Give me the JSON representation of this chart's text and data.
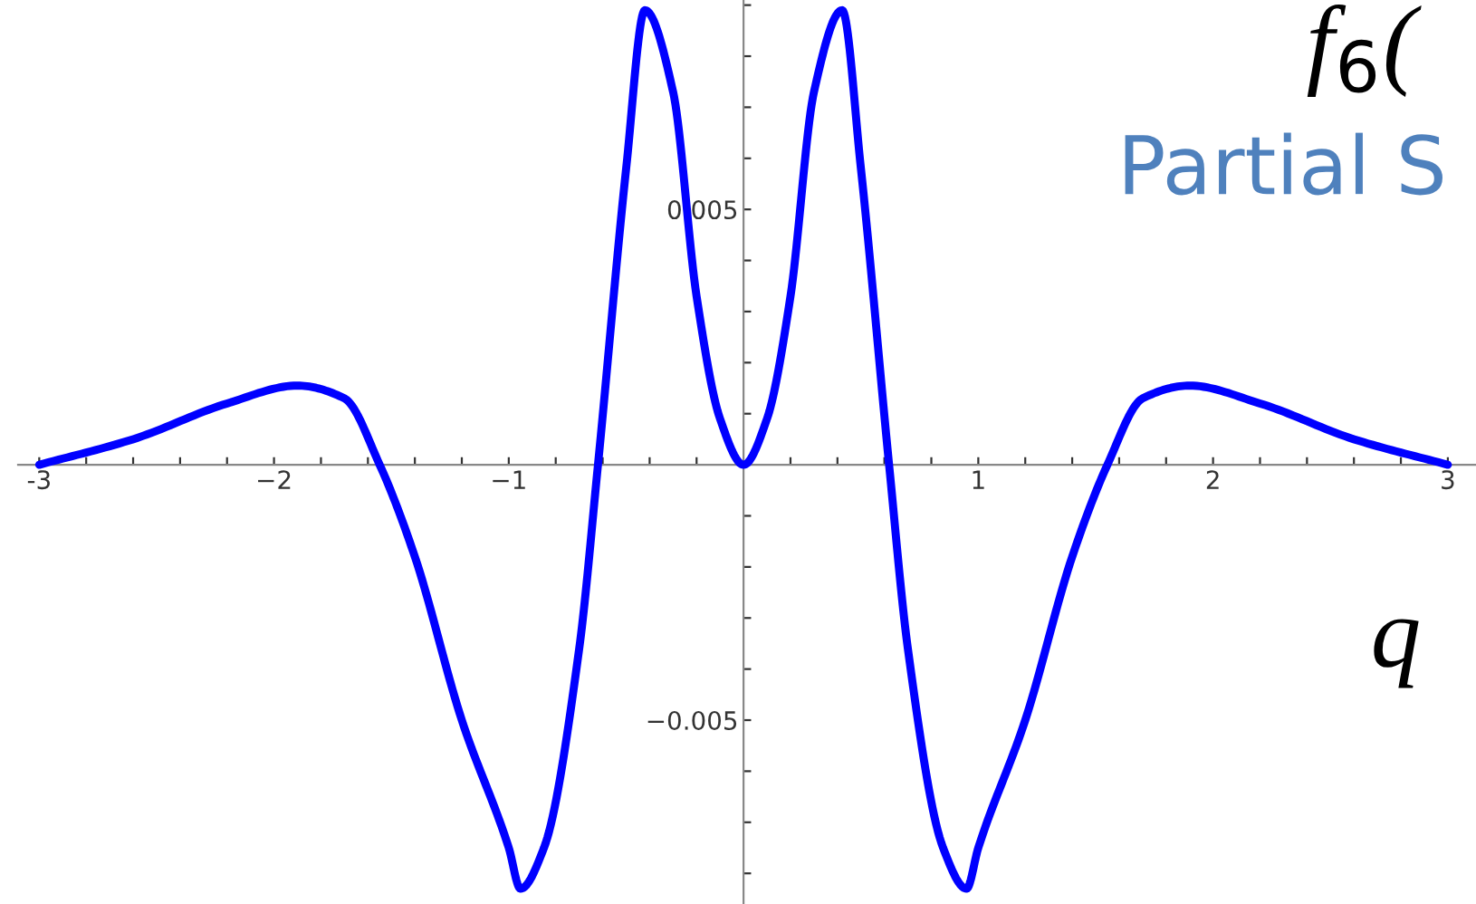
{
  "chart_data": {
    "type": "line",
    "xlabel": "q",
    "x": [
      -3,
      -2.6,
      -2.2,
      -1.9,
      -1.7,
      -1.55,
      -1.4,
      -1.2,
      -1.0,
      -0.95,
      -0.85,
      -0.7,
      -0.62,
      -0.5,
      -0.42,
      -0.3,
      -0.2,
      -0.1,
      0,
      0.1,
      0.2,
      0.3,
      0.42,
      0.5,
      0.62,
      0.7,
      0.85,
      0.95,
      1.0,
      1.2,
      1.4,
      1.55,
      1.7,
      1.9,
      2.2,
      2.6,
      3
    ],
    "series": [
      {
        "color": "#0000ff",
        "values": [
          0,
          0.0005,
          0.0012,
          0.00155,
          0.0013,
          0,
          -0.0018,
          -0.005,
          -0.0075,
          -0.0083,
          -0.0075,
          -0.0036,
          0,
          0.0058,
          0.0089,
          0.0073,
          0.0033,
          0.0009,
          0,
          0.0009,
          0.0033,
          0.0073,
          0.0089,
          0.0058,
          0,
          -0.0036,
          -0.0075,
          -0.0083,
          -0.0075,
          -0.005,
          -0.0018,
          0,
          0.0013,
          0.00155,
          0.0012,
          0.0005,
          0
        ]
      }
    ],
    "xlim": [
      -3.09,
      3.12
    ],
    "ylim": [
      -0.0086,
      0.0091
    ],
    "xticks": [
      -3,
      {
        "value": -2.8,
        "label": null
      },
      {
        "value": -2.6,
        "label": null
      },
      {
        "value": -2.4,
        "label": null
      },
      {
        "value": -2.2,
        "label": null
      },
      {
        "value": -2,
        "label": "−2"
      },
      {
        "value": -1.8,
        "label": null
      },
      {
        "value": -1.6,
        "label": null
      },
      {
        "value": -1.4,
        "label": null
      },
      {
        "value": -1.2,
        "label": null
      },
      {
        "value": -1,
        "label": "−1"
      },
      {
        "value": -0.8,
        "label": null
      },
      {
        "value": -0.6,
        "label": null
      },
      {
        "value": -0.4,
        "label": null
      },
      {
        "value": -0.2,
        "label": null
      },
      {
        "value": 0.2,
        "label": null
      },
      {
        "value": 0.4,
        "label": null
      },
      {
        "value": 0.6,
        "label": null
      },
      {
        "value": 0.8,
        "label": null
      },
      1,
      {
        "value": 1.2,
        "label": null
      },
      {
        "value": 1.4,
        "label": null
      },
      {
        "value": 1.6,
        "label": null
      },
      {
        "value": 1.8,
        "label": null
      },
      2,
      {
        "value": 2.2,
        "label": null
      },
      {
        "value": 2.4,
        "label": null
      },
      {
        "value": 2.6,
        "label": null
      },
      {
        "value": 2.8,
        "label": null
      },
      3
    ],
    "yticks": [
      {
        "value": -0.008,
        "label": null
      },
      {
        "value": -0.007,
        "label": null
      },
      {
        "value": -0.006,
        "label": null
      },
      {
        "value": -0.005,
        "label": "−0.005"
      },
      {
        "value": -0.004,
        "label": null
      },
      {
        "value": -0.003,
        "label": null
      },
      {
        "value": -0.002,
        "label": null
      },
      {
        "value": -0.001,
        "label": null
      },
      {
        "value": 0.001,
        "label": null
      },
      {
        "value": 0.002,
        "label": null
      },
      {
        "value": 0.003,
        "label": null
      },
      {
        "value": 0.004,
        "label": null
      },
      0.005,
      {
        "value": 0.006,
        "label": null
      },
      {
        "value": 0.007,
        "label": null
      },
      {
        "value": 0.008,
        "label": null
      },
      {
        "value": 0.009,
        "label": null
      }
    ],
    "grid": false,
    "line_style": "solid",
    "marker": "none",
    "annotations": [
      "f$_{6}$(",
      "Partial S"
    ]
  }
}
